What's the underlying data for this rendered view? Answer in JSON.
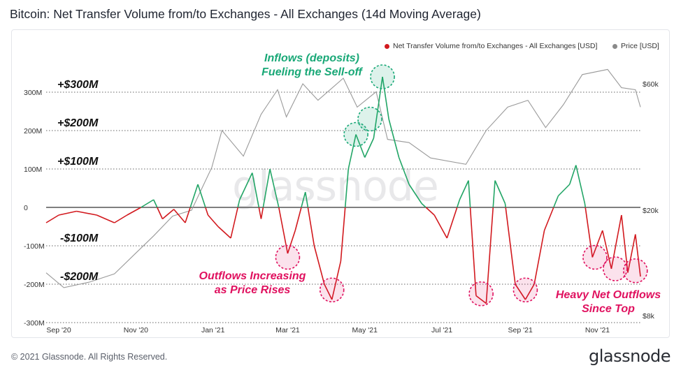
{
  "title": "Bitcoin: Net Transfer Volume from/to Exchanges - All Exchanges (14d Moving Average)",
  "footer": {
    "copyright": "© 2021 Glassnode. All Rights Reserved.",
    "brand": "glassnode"
  },
  "watermark": "glassnode",
  "colors": {
    "positive": "#22a566",
    "negative": "#d2191e",
    "price": "#9a9a9a",
    "annot_green": "#19a877",
    "annot_pink": "#e0115f"
  },
  "legend": [
    {
      "label": "Net Transfer Volume from/to Exchanges - All Exchanges [USD]",
      "color": "#d2191e"
    },
    {
      "label": "Price [USD]",
      "color": "#8a8a8a"
    }
  ],
  "axis_labels": {
    "y_left": [
      "300M",
      "200M",
      "100M",
      "0",
      "-100M",
      "-200M",
      "-300M"
    ],
    "y_right": [
      "$60k",
      "$20k",
      "$8k"
    ],
    "x": [
      "Sep '20",
      "Nov '20",
      "Jan '21",
      "Mar '21",
      "May '21",
      "Jul '21",
      "Sep '21",
      "Nov '21"
    ]
  },
  "level_labels": [
    "+$300M",
    "+$200M",
    "+$100M",
    "-$100M",
    "-$200M"
  ],
  "annotations": {
    "inflows": "Inflows (deposits)\nFueling the Sell-off",
    "outflows_increasing": "Outflows Increasing\nas Price Rises",
    "heavy_outflows": "Heavy Net Outflows\nSince Top"
  },
  "chart_data": {
    "type": "line",
    "title": "Bitcoin: Net Transfer Volume from/to Exchanges - All Exchanges (14d Moving Average)",
    "x_range": [
      "2020-08-22",
      "2021-12-05"
    ],
    "ylim_left": [
      -300000000,
      300000000
    ],
    "y_right_scale": "log",
    "ylim_right": [
      8000,
      80000
    ],
    "grid": true,
    "legend_position": "top-right",
    "series": [
      {
        "name": "Net Transfer Volume from/to Exchanges - All Exchanges [USD]",
        "axis": "left",
        "points": [
          [
            "2020-08-22",
            -40000000
          ],
          [
            "2020-09-01",
            -20000000
          ],
          [
            "2020-09-15",
            -10000000
          ],
          [
            "2020-10-01",
            -20000000
          ],
          [
            "2020-10-15",
            -40000000
          ],
          [
            "2020-10-25",
            -20000000
          ],
          [
            "2020-11-05",
            0
          ],
          [
            "2020-11-15",
            20000000
          ],
          [
            "2020-11-22",
            -30000000
          ],
          [
            "2020-12-01",
            -5000000
          ],
          [
            "2020-12-10",
            -40000000
          ],
          [
            "2020-12-20",
            60000000
          ],
          [
            "2020-12-28",
            -20000000
          ],
          [
            "2021-01-05",
            -50000000
          ],
          [
            "2021-01-15",
            -80000000
          ],
          [
            "2021-01-22",
            20000000
          ],
          [
            "2021-02-01",
            90000000
          ],
          [
            "2021-02-08",
            -30000000
          ],
          [
            "2021-02-15",
            100000000
          ],
          [
            "2021-02-22",
            0
          ],
          [
            "2021-03-01",
            -120000000
          ],
          [
            "2021-03-07",
            -60000000
          ],
          [
            "2021-03-15",
            40000000
          ],
          [
            "2021-03-22",
            -100000000
          ],
          [
            "2021-03-30",
            -200000000
          ],
          [
            "2021-04-05",
            -240000000
          ],
          [
            "2021-04-12",
            -140000000
          ],
          [
            "2021-04-18",
            100000000
          ],
          [
            "2021-04-24",
            190000000
          ],
          [
            "2021-05-01",
            130000000
          ],
          [
            "2021-05-08",
            180000000
          ],
          [
            "2021-05-15",
            340000000
          ],
          [
            "2021-05-20",
            230000000
          ],
          [
            "2021-05-28",
            130000000
          ],
          [
            "2021-06-05",
            60000000
          ],
          [
            "2021-06-15",
            10000000
          ],
          [
            "2021-06-25",
            -20000000
          ],
          [
            "2021-07-05",
            -80000000
          ],
          [
            "2021-07-15",
            20000000
          ],
          [
            "2021-07-22",
            70000000
          ],
          [
            "2021-07-28",
            -230000000
          ],
          [
            "2021-08-05",
            -250000000
          ],
          [
            "2021-08-12",
            70000000
          ],
          [
            "2021-08-20",
            10000000
          ],
          [
            "2021-08-28",
            -200000000
          ],
          [
            "2021-09-05",
            -240000000
          ],
          [
            "2021-09-12",
            -200000000
          ],
          [
            "2021-09-20",
            -60000000
          ],
          [
            "2021-10-01",
            30000000
          ],
          [
            "2021-10-10",
            60000000
          ],
          [
            "2021-10-15",
            110000000
          ],
          [
            "2021-10-22",
            10000000
          ],
          [
            "2021-10-28",
            -130000000
          ],
          [
            "2021-11-05",
            -60000000
          ],
          [
            "2021-11-12",
            -160000000
          ],
          [
            "2021-11-20",
            -20000000
          ],
          [
            "2021-11-25",
            -170000000
          ],
          [
            "2021-12-01",
            -70000000
          ],
          [
            "2021-12-05",
            -180000000
          ]
        ]
      },
      {
        "name": "Price [USD]",
        "axis": "right",
        "points": [
          [
            "2020-08-22",
            11600
          ],
          [
            "2020-09-05",
            10200
          ],
          [
            "2020-09-25",
            10700
          ],
          [
            "2020-10-15",
            11500
          ],
          [
            "2020-10-30",
            13500
          ],
          [
            "2020-11-15",
            16000
          ],
          [
            "2020-11-30",
            19000
          ],
          [
            "2020-12-15",
            20000
          ],
          [
            "2020-12-31",
            29000
          ],
          [
            "2021-01-08",
            40000
          ],
          [
            "2021-01-25",
            32000
          ],
          [
            "2021-02-08",
            46000
          ],
          [
            "2021-02-21",
            57000
          ],
          [
            "2021-02-28",
            45000
          ],
          [
            "2021-03-13",
            60000
          ],
          [
            "2021-03-25",
            52000
          ],
          [
            "2021-04-14",
            63000
          ],
          [
            "2021-04-25",
            49000
          ],
          [
            "2021-05-10",
            56000
          ],
          [
            "2021-05-19",
            37000
          ],
          [
            "2021-06-05",
            36000
          ],
          [
            "2021-06-22",
            31500
          ],
          [
            "2021-07-20",
            29800
          ],
          [
            "2021-08-05",
            40000
          ],
          [
            "2021-08-22",
            49000
          ],
          [
            "2021-09-07",
            52000
          ],
          [
            "2021-09-21",
            41000
          ],
          [
            "2021-10-05",
            50000
          ],
          [
            "2021-10-20",
            65000
          ],
          [
            "2021-11-09",
            68000
          ],
          [
            "2021-11-20",
            58000
          ],
          [
            "2021-12-01",
            57000
          ],
          [
            "2021-12-05",
            49000
          ]
        ]
      }
    ]
  }
}
